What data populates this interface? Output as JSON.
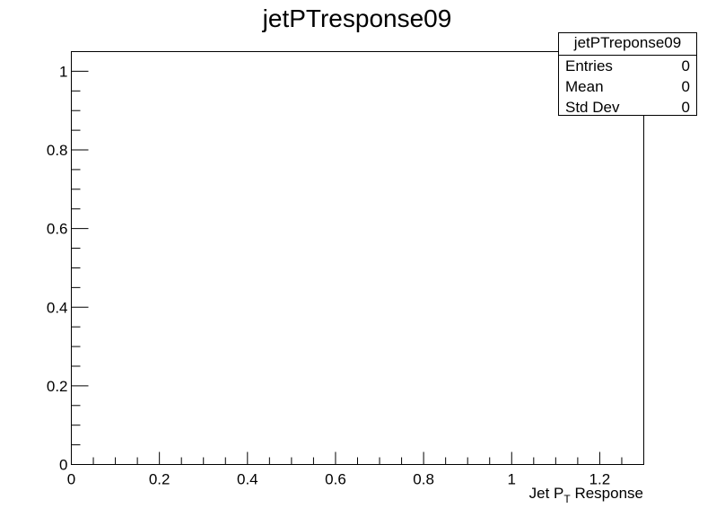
{
  "chart_data": {
    "type": "bar",
    "title": "jetPTresponse09",
    "xlabel": {
      "main": "Jet P",
      "sub": "T",
      "tail": " Response"
    },
    "ylabel": "",
    "xlim": [
      0,
      1.3
    ],
    "ylim": [
      0,
      1.05
    ],
    "x_ticks": [
      0,
      0.2,
      0.4,
      0.6,
      0.8,
      1,
      1.2
    ],
    "x_tick_labels": [
      "0",
      "0.2",
      "0.4",
      "0.6",
      "0.8",
      "1",
      "1.2"
    ],
    "y_ticks": [
      0,
      0.2,
      0.4,
      0.6,
      0.8,
      1
    ],
    "y_tick_labels": [
      "0",
      "0.2",
      "0.4",
      "0.6",
      "0.8",
      "1"
    ],
    "x_minor_step": 0.05,
    "y_minor_step": 0.05,
    "values": [],
    "grid": false,
    "legend": "none"
  },
  "stats_box": {
    "title": "jetPTreponse09",
    "rows": [
      {
        "label": "Entries",
        "value": "0"
      },
      {
        "label": "Mean",
        "value": "0"
      },
      {
        "label": "Std Dev",
        "value": "0"
      }
    ]
  }
}
